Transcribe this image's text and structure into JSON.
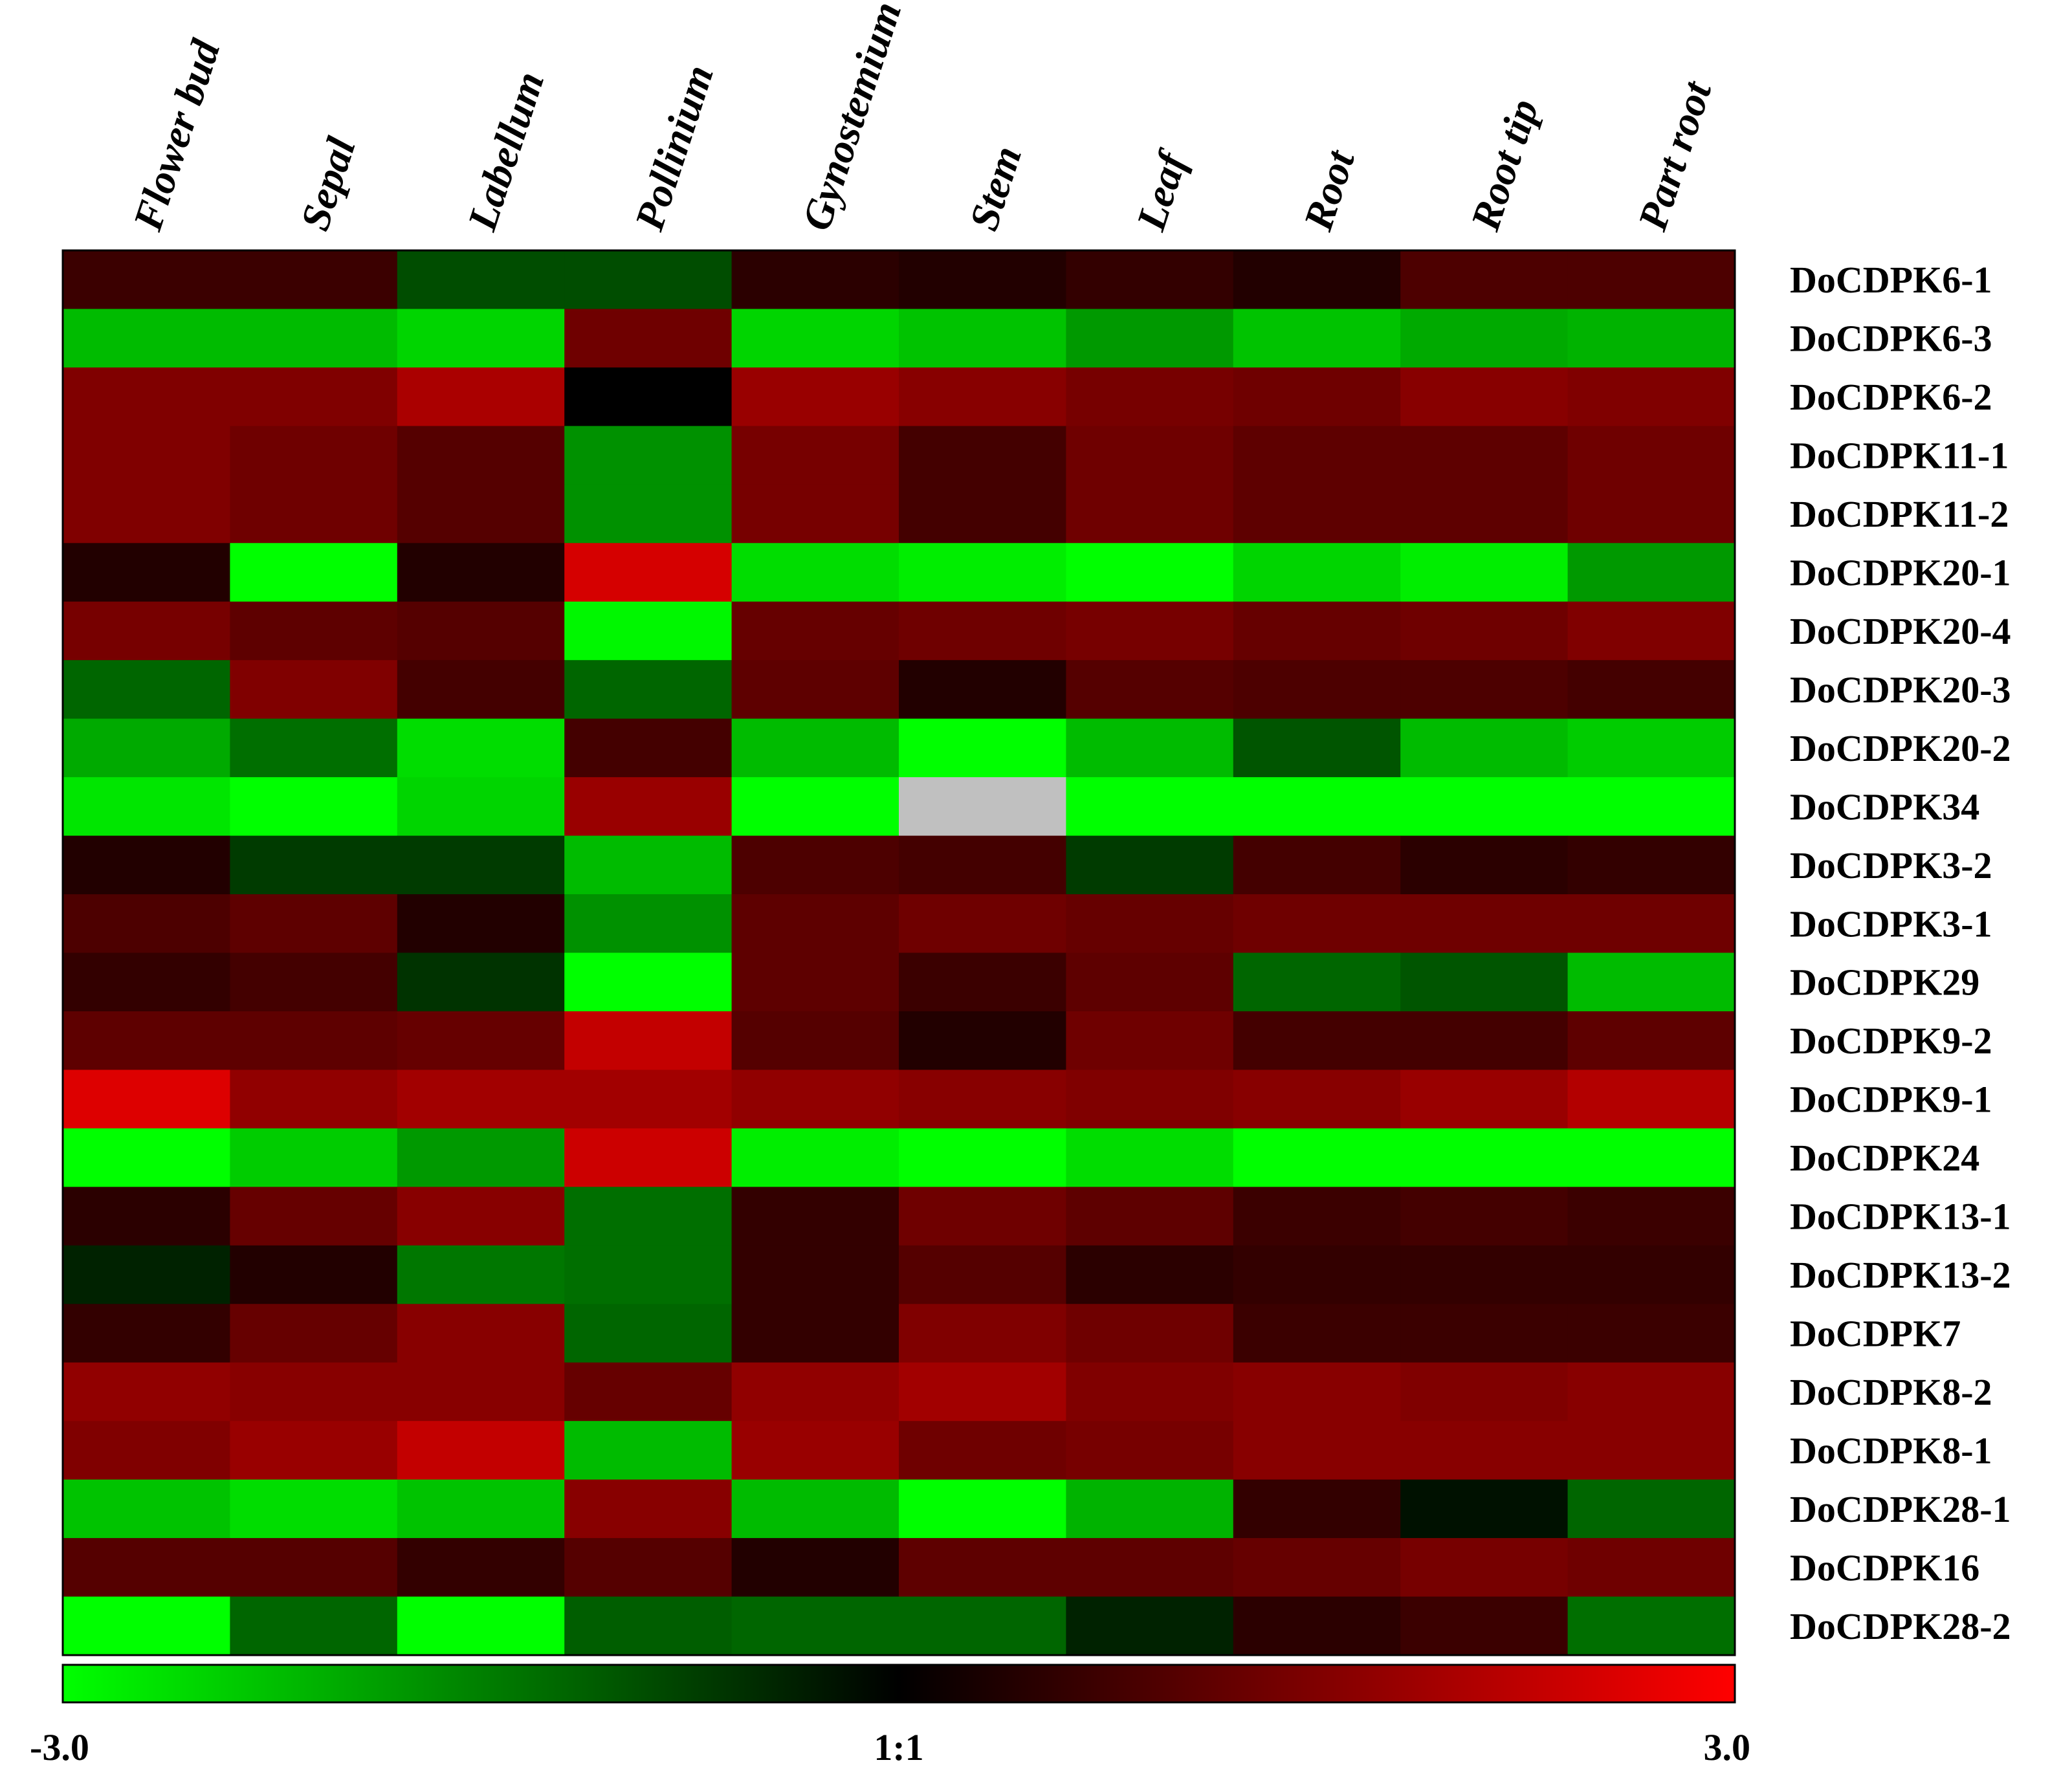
{
  "chart_data": {
    "type": "heatmap",
    "columns": [
      "Flower bud",
      "Sepal",
      "Labellum",
      "Pollinium",
      "Gynostemium",
      "Stem",
      "Leaf",
      "Root",
      "Root tip",
      "Part root"
    ],
    "rows": [
      "DoCDPK6-1",
      "DoCDPK6-3",
      "DoCDPK6-2",
      "DoCDPK11-1",
      "DoCDPK11-2",
      "DoCDPK20-1",
      "DoCDPK20-4",
      "DoCDPK20-3",
      "DoCDPK20-2",
      "DoCDPK34",
      "DoCDPK3-2",
      "DoCDPK3-1",
      "DoCDPK29",
      "DoCDPK9-2",
      "DoCDPK9-1",
      "DoCDPK24",
      "DoCDPK13-1",
      "DoCDPK13-2",
      "DoCDPK7",
      "DoCDPK8-2",
      "DoCDPK8-1",
      "DoCDPK28-1",
      "DoCDPK16",
      "DoCDPK28-2"
    ],
    "values": [
      [
        0.7,
        0.7,
        -0.9,
        -0.9,
        0.5,
        0.4,
        0.6,
        0.4,
        0.9,
        0.9
      ],
      [
        -2.2,
        -2.2,
        -2.5,
        1.3,
        -2.5,
        -2.3,
        -1.8,
        -2.3,
        -2.0,
        -2.1
      ],
      [
        1.5,
        1.5,
        2.0,
        0.0,
        1.8,
        1.6,
        1.4,
        1.3,
        1.6,
        1.5
      ],
      [
        1.5,
        1.3,
        1.0,
        -1.7,
        1.4,
        0.8,
        1.3,
        1.1,
        1.1,
        1.3
      ],
      [
        1.5,
        1.3,
        1.0,
        -1.7,
        1.4,
        0.8,
        1.3,
        1.1,
        1.1,
        1.3
      ],
      [
        0.4,
        -3.0,
        0.4,
        2.5,
        -2.6,
        -2.8,
        -3.0,
        -2.5,
        -2.8,
        -1.8
      ],
      [
        1.4,
        1.1,
        1.0,
        -2.9,
        1.2,
        1.3,
        1.4,
        1.2,
        1.3,
        1.5
      ],
      [
        -1.2,
        1.5,
        0.8,
        -1.2,
        1.1,
        0.4,
        1.0,
        0.9,
        0.9,
        0.8
      ],
      [
        -2.0,
        -1.3,
        -2.6,
        0.8,
        -2.2,
        -3.0,
        -2.2,
        -1.0,
        -2.2,
        -2.4
      ],
      [
        -2.7,
        -3.0,
        -2.5,
        1.8,
        -3.0,
        null,
        -3.0,
        -3.0,
        -3.0,
        -3.0
      ],
      [
        0.4,
        -0.7,
        -0.7,
        -2.2,
        0.9,
        0.8,
        -0.7,
        0.8,
        0.5,
        0.6
      ],
      [
        0.9,
        1.1,
        0.4,
        -1.7,
        1.1,
        1.3,
        1.2,
        1.3,
        1.3,
        1.3
      ],
      [
        0.6,
        0.8,
        -0.6,
        -3.0,
        1.1,
        0.7,
        1.1,
        -1.2,
        -1.0,
        -2.2
      ],
      [
        1.1,
        1.1,
        1.2,
        2.3,
        1.0,
        0.4,
        1.3,
        0.8,
        0.8,
        1.1
      ],
      [
        2.6,
        1.7,
        1.9,
        1.9,
        1.7,
        1.6,
        1.5,
        1.6,
        1.8,
        2.1
      ],
      [
        -3.0,
        -2.4,
        -1.8,
        2.4,
        -2.8,
        -3.0,
        -2.6,
        -3.0,
        -3.0,
        -3.0
      ],
      [
        0.5,
        1.2,
        1.6,
        -1.3,
        0.6,
        1.3,
        1.1,
        0.7,
        0.8,
        0.7
      ],
      [
        -0.4,
        0.4,
        -1.4,
        -1.3,
        0.6,
        1.0,
        0.5,
        0.6,
        0.6,
        0.6
      ],
      [
        0.6,
        1.2,
        1.6,
        -1.2,
        0.6,
        1.5,
        1.3,
        0.7,
        0.7,
        0.7
      ],
      [
        1.7,
        1.6,
        1.6,
        1.2,
        1.7,
        1.9,
        1.5,
        1.6,
        1.5,
        1.6
      ],
      [
        1.5,
        1.8,
        2.3,
        -2.2,
        1.8,
        1.3,
        1.4,
        1.6,
        1.6,
        1.6
      ],
      [
        -2.3,
        -2.6,
        -2.3,
        1.6,
        -2.2,
        -3.0,
        -2.1,
        0.6,
        -0.2,
        -1.2
      ],
      [
        1.0,
        1.0,
        0.6,
        1.0,
        0.4,
        1.1,
        1.1,
        1.2,
        1.4,
        1.3
      ],
      [
        -3.0,
        -1.2,
        -3.0,
        -1.1,
        -1.2,
        -1.2,
        -0.4,
        0.5,
        0.7,
        -1.3
      ]
    ],
    "scale": {
      "min": -3.0,
      "max": 3.0,
      "min_label": "-3.0",
      "mid_label": "1:1",
      "max_label": "3.0"
    },
    "colors": {
      "low": "#00ff00",
      "mid": "#000000",
      "high": "#ff0000",
      "missing": "#c0c0c0"
    }
  }
}
